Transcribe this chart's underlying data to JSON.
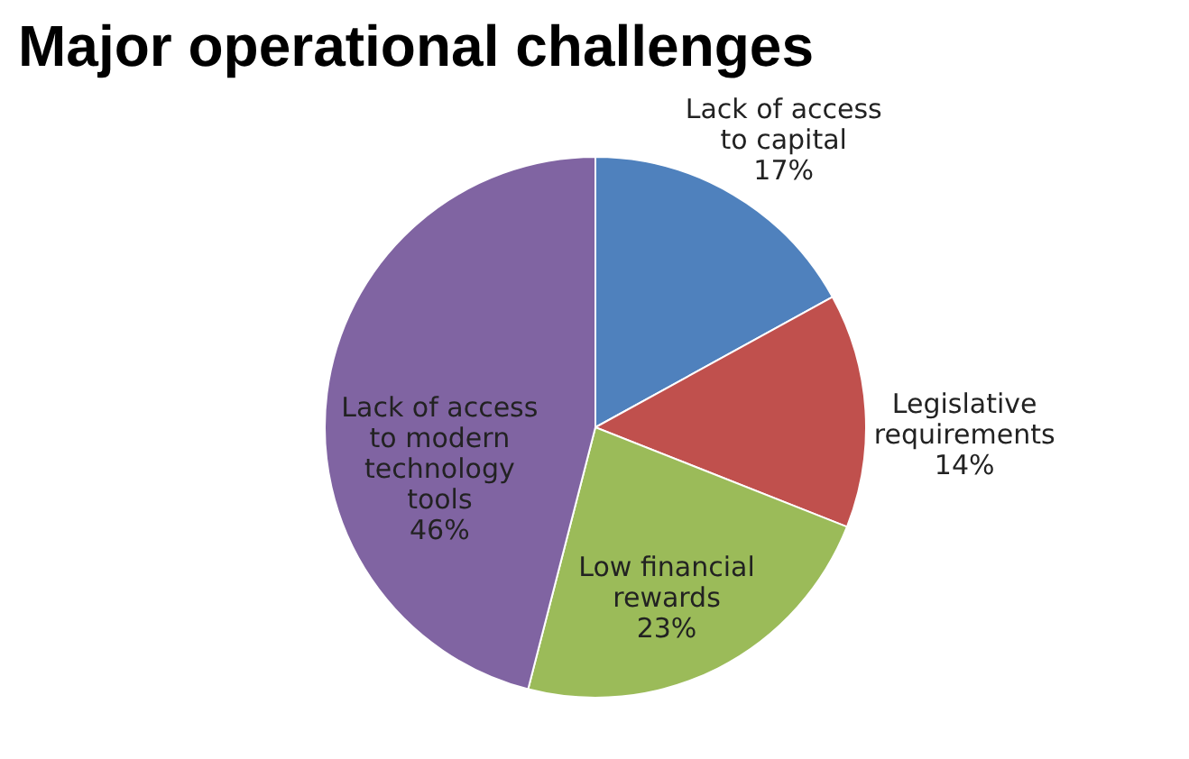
{
  "chart_data": {
    "type": "pie",
    "title": "Major operational challenges",
    "categories": [
      "Lack of access to capital",
      "Legislative requirements",
      "Low financial rewards",
      "Lack of access to modern technology tools"
    ],
    "values": [
      17,
      14,
      23,
      46
    ],
    "value_labels": [
      "17%",
      "14%",
      "23%",
      "46%"
    ],
    "colors": [
      "#4f81bd",
      "#c0504d",
      "#9bbb59",
      "#8064a2"
    ],
    "legend": false
  }
}
